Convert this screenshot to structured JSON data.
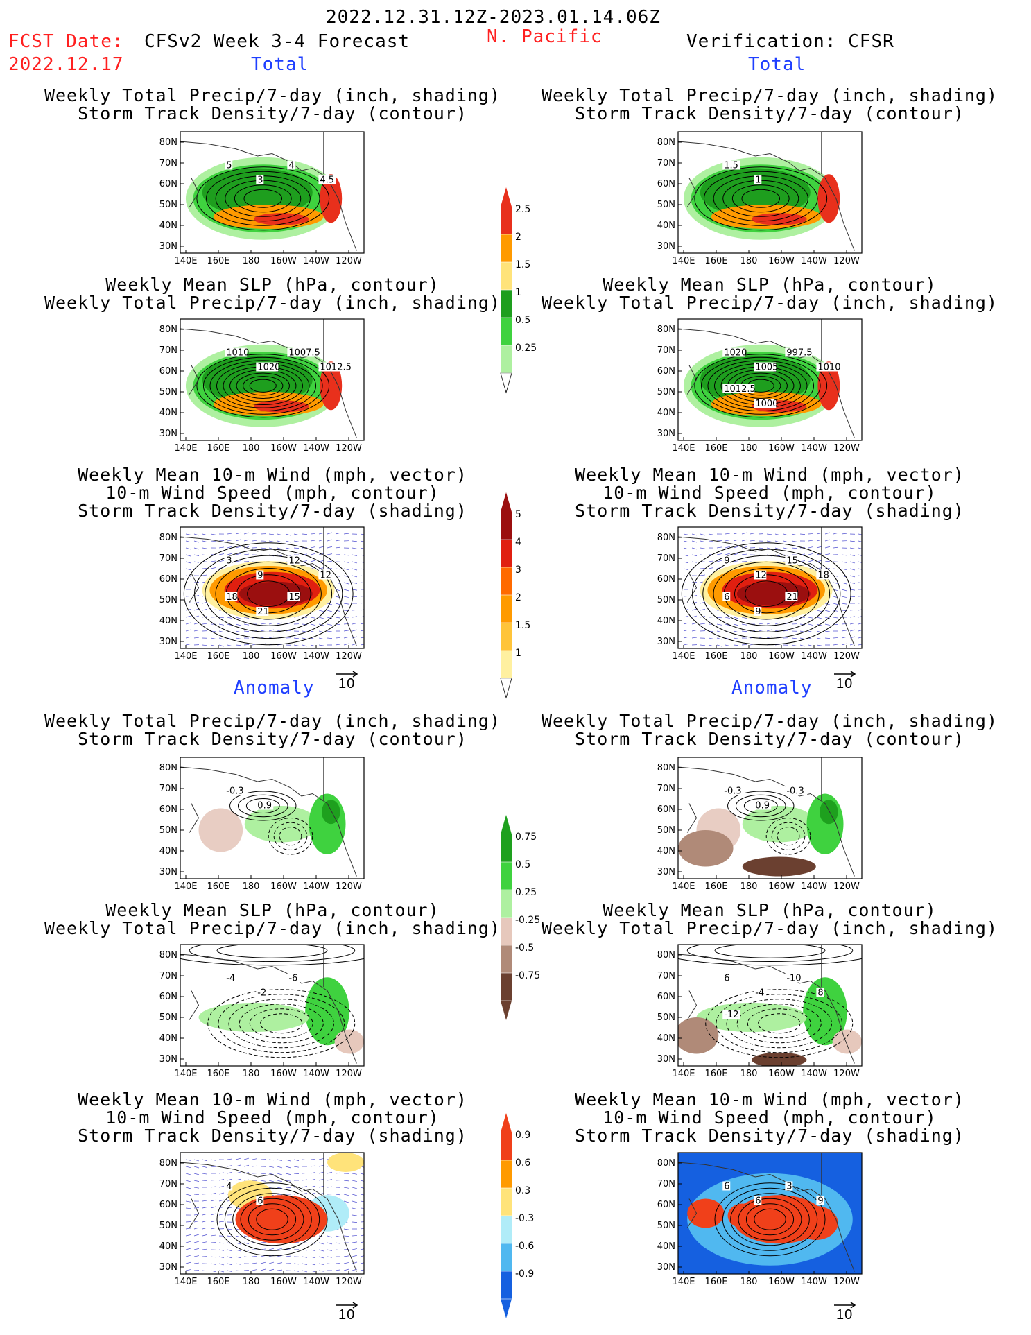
{
  "header": {
    "date_range": "2022.12.31.12Z-2023.01.14.06Z",
    "fcst_label": "FCST Date:",
    "fcst_date": "2022.12.17",
    "forecast_title": "CFSv2 Week 3-4 Forecast",
    "region": "N. Pacific",
    "verification": "Verification: CFSR"
  },
  "sections": {
    "total": "Total",
    "anomaly": "Anomaly"
  },
  "titles": {
    "precip_storm": [
      "Weekly Total Precip/7-day (inch, shading)",
      "Storm Track Density/7-day (contour)"
    ],
    "slp_precip": [
      "Weekly Mean SLP (hPa, contour)",
      "Weekly Total Precip/7-day (inch, shading)"
    ],
    "wind_storm": [
      "Weekly Mean 10-m Wind (mph, vector)",
      "10-m Wind Speed (mph, contour)",
      "Storm Track Density/7-day (shading)"
    ]
  },
  "axes": {
    "lat_ticks": [
      "80N",
      "70N",
      "60N",
      "50N",
      "40N",
      "30N"
    ],
    "lon_ticks": [
      "140E",
      "160E",
      "180",
      "160W",
      "140W",
      "120W"
    ]
  },
  "vector_ref": "10",
  "colorbars": {
    "precip_total": {
      "labels": [
        "2.5",
        "2",
        "1.5",
        "1",
        "0.5",
        "0.25"
      ],
      "colors": [
        "#e8301c",
        "#ff9a00",
        "#ffe37a",
        "#1e9e1e",
        "#3fd23f",
        "#aef0a0"
      ]
    },
    "storm_total": {
      "labels": [
        "5",
        "4",
        "3",
        "2",
        "1.5",
        "1"
      ],
      "colors": [
        "#9b0f0f",
        "#e01f10",
        "#ff6a00",
        "#ff9a00",
        "#ffc43a",
        "#fff0a0"
      ]
    },
    "precip_anom": {
      "labels": [
        "0.75",
        "0.5",
        "0.25",
        "-0.25",
        "-0.5",
        "-0.75"
      ],
      "colors": [
        "#1ea01e",
        "#3fd23f",
        "#aef0a0",
        "#e6c8bc",
        "#b08a78",
        "#6b4030"
      ]
    },
    "storm_anom": {
      "labels": [
        "0.9",
        "0.6",
        "0.3",
        "-0.3",
        "-0.6",
        "-0.9"
      ],
      "colors": [
        "#f0401a",
        "#ff9a00",
        "#ffe37a",
        "#b0ecf8",
        "#50b8f0",
        "#1560e0"
      ]
    }
  },
  "contour_labels": {
    "p1": [
      "5",
      "3",
      "4",
      "4.5"
    ],
    "p2": [
      "1.5",
      "1"
    ],
    "p3": [
      "1010",
      "1020",
      "1007.5",
      "1012.5"
    ],
    "p4": [
      "1020",
      "1005",
      "997.5",
      "1010",
      "1012.5",
      "1000"
    ],
    "p5": [
      "3",
      "9",
      "12",
      "12",
      "18",
      "21",
      "15"
    ],
    "p6": [
      "9",
      "12",
      "15",
      "18",
      "6",
      "9",
      "21"
    ],
    "p7": [
      "-0.3",
      "0.9"
    ],
    "p8": [
      "-0.3",
      "0.9",
      "-0.3"
    ],
    "p9": [
      "-4",
      "-2",
      "-6"
    ],
    "p10": [
      "6",
      "-4",
      "-10",
      "8",
      "-12"
    ],
    "p11": [
      "4",
      "6"
    ],
    "p12": [
      "6",
      "6",
      "3",
      "9"
    ]
  }
}
